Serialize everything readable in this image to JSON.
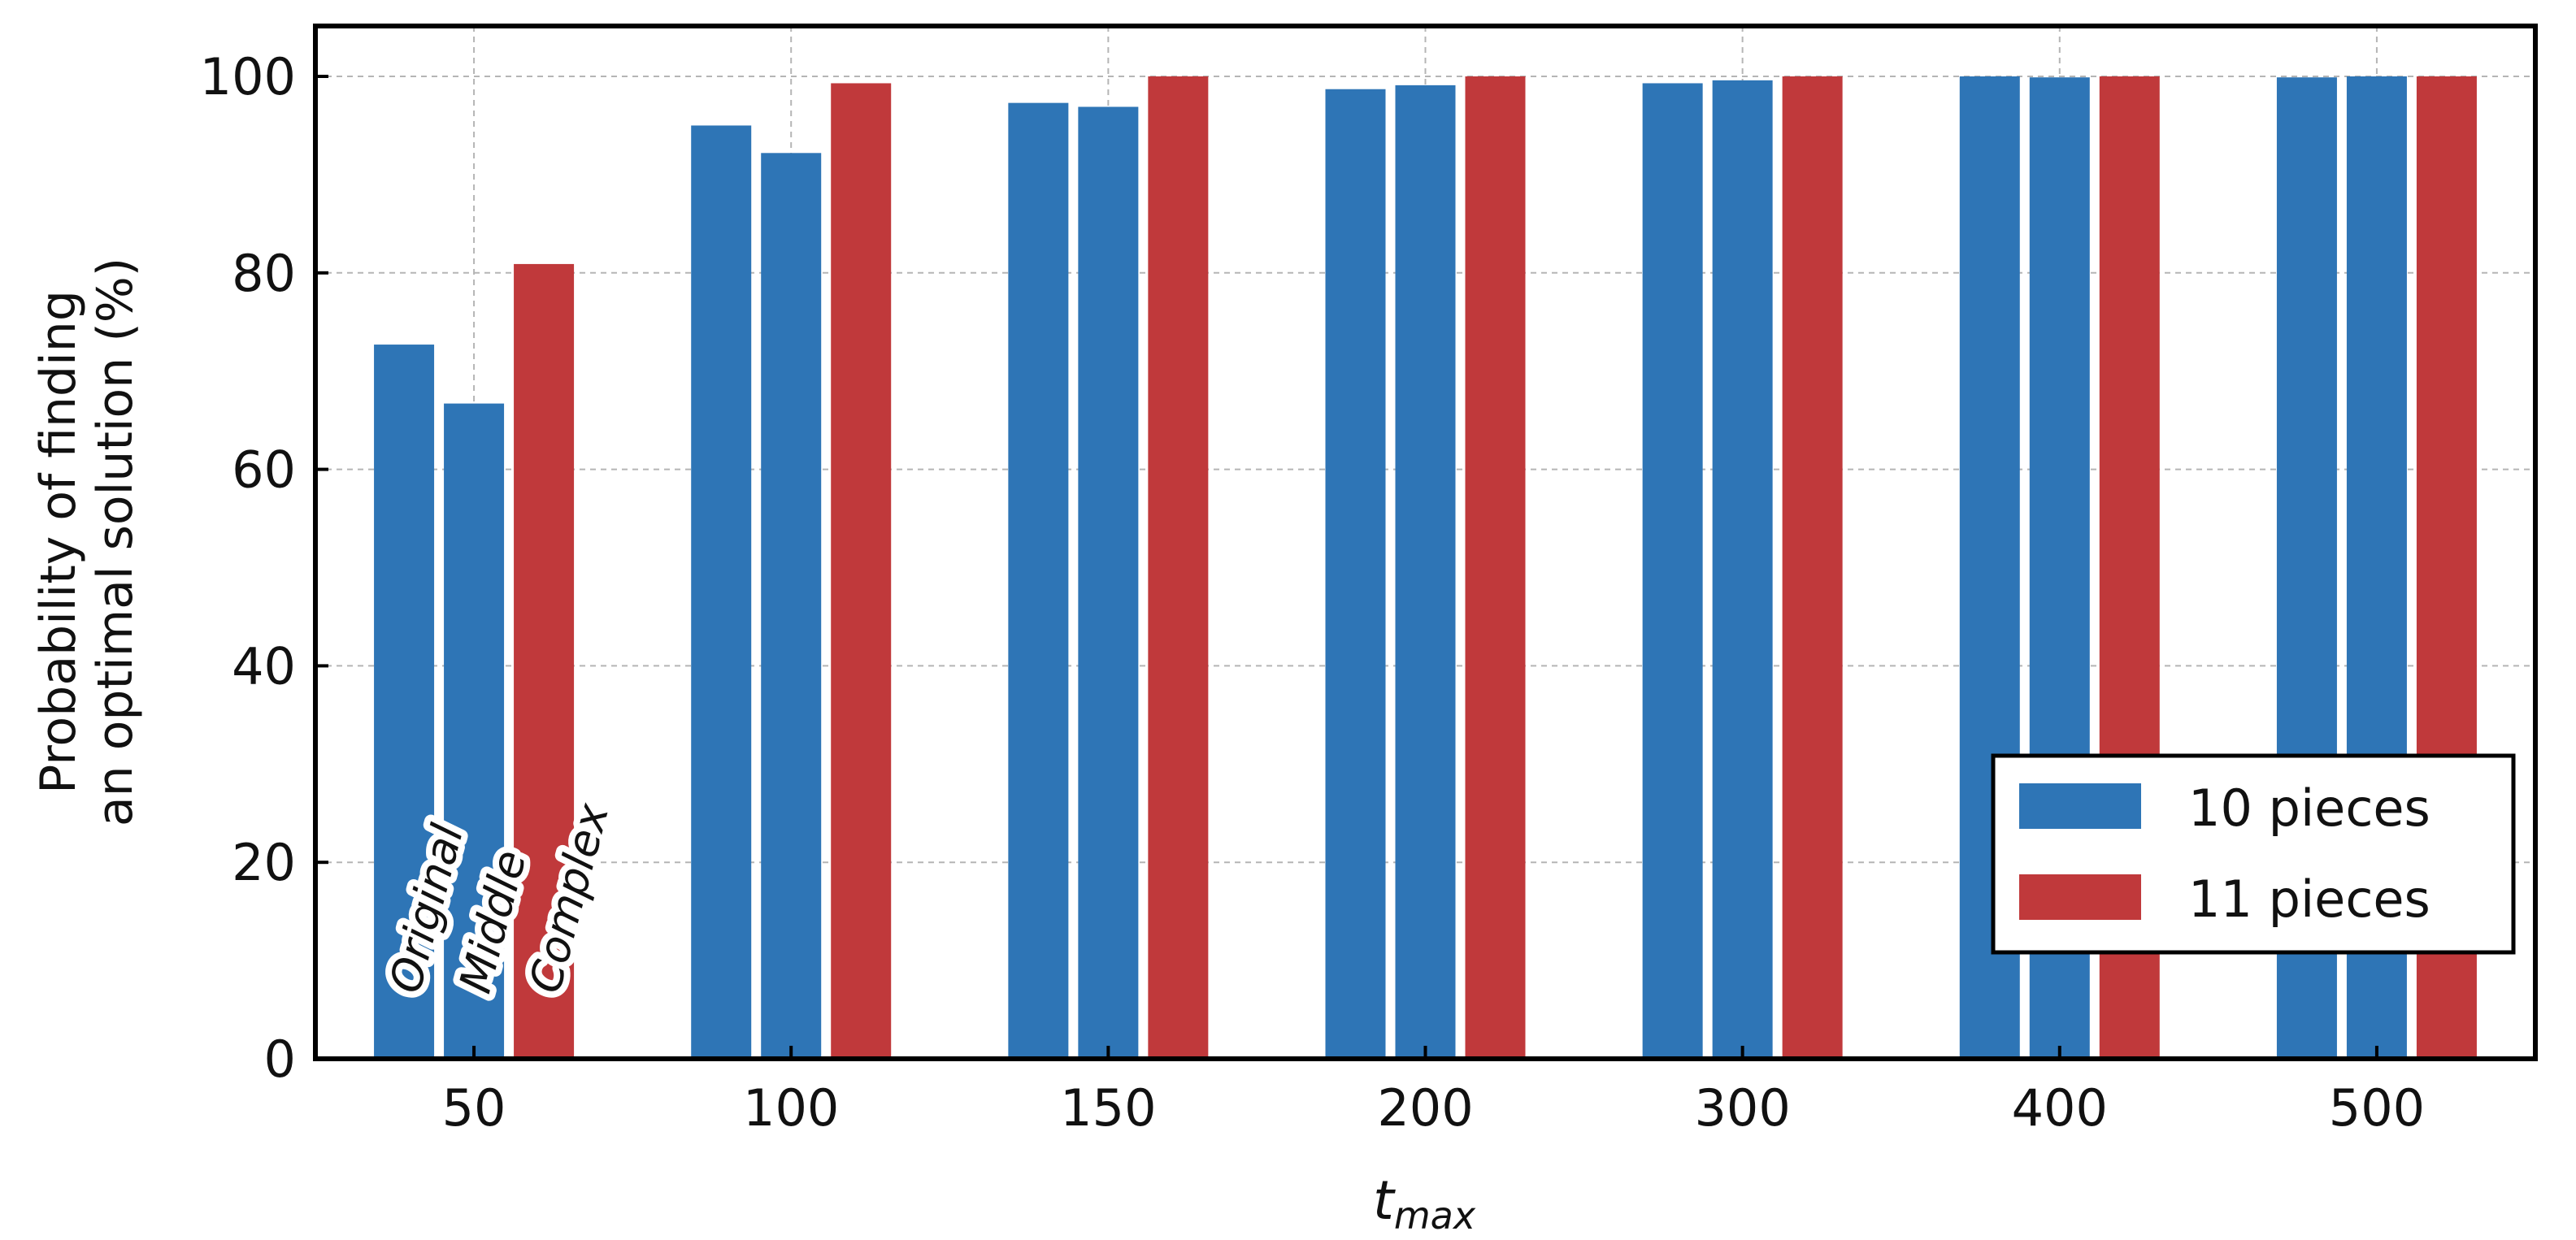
{
  "chart_data": {
    "type": "bar",
    "categories": [
      "50",
      "100",
      "150",
      "200",
      "300",
      "400",
      "500"
    ],
    "bar_labels": [
      "Original",
      "Middle",
      "Complex"
    ],
    "series": [
      {
        "label": "Original",
        "values": [
          72.7,
          95.0,
          97.3,
          98.7,
          99.3,
          100.0,
          99.9
        ],
        "color": "#2e75b6"
      },
      {
        "label": "Middle",
        "values": [
          66.7,
          92.2,
          96.9,
          99.1,
          99.6,
          99.9,
          100.0
        ],
        "color": "#2e75b6"
      },
      {
        "label": "Complex",
        "values": [
          80.9,
          99.3,
          100.0,
          100.0,
          100.0,
          100.0,
          100.0
        ],
        "color": "#c0393b"
      }
    ],
    "legend": [
      {
        "name": "10 pieces",
        "color": "#2e75b6"
      },
      {
        "name": "11 pieces",
        "color": "#c0393b"
      }
    ],
    "legend_position": "lower-right",
    "xlabel_main": "t",
    "xlabel_sub": "max",
    "ylabel_lines": [
      "Probability of finding",
      "an optimal solution (%)"
    ],
    "ylim": [
      0,
      100
    ],
    "yticks": [
      "0",
      "20",
      "40",
      "60",
      "80",
      "100"
    ],
    "grid": true
  }
}
